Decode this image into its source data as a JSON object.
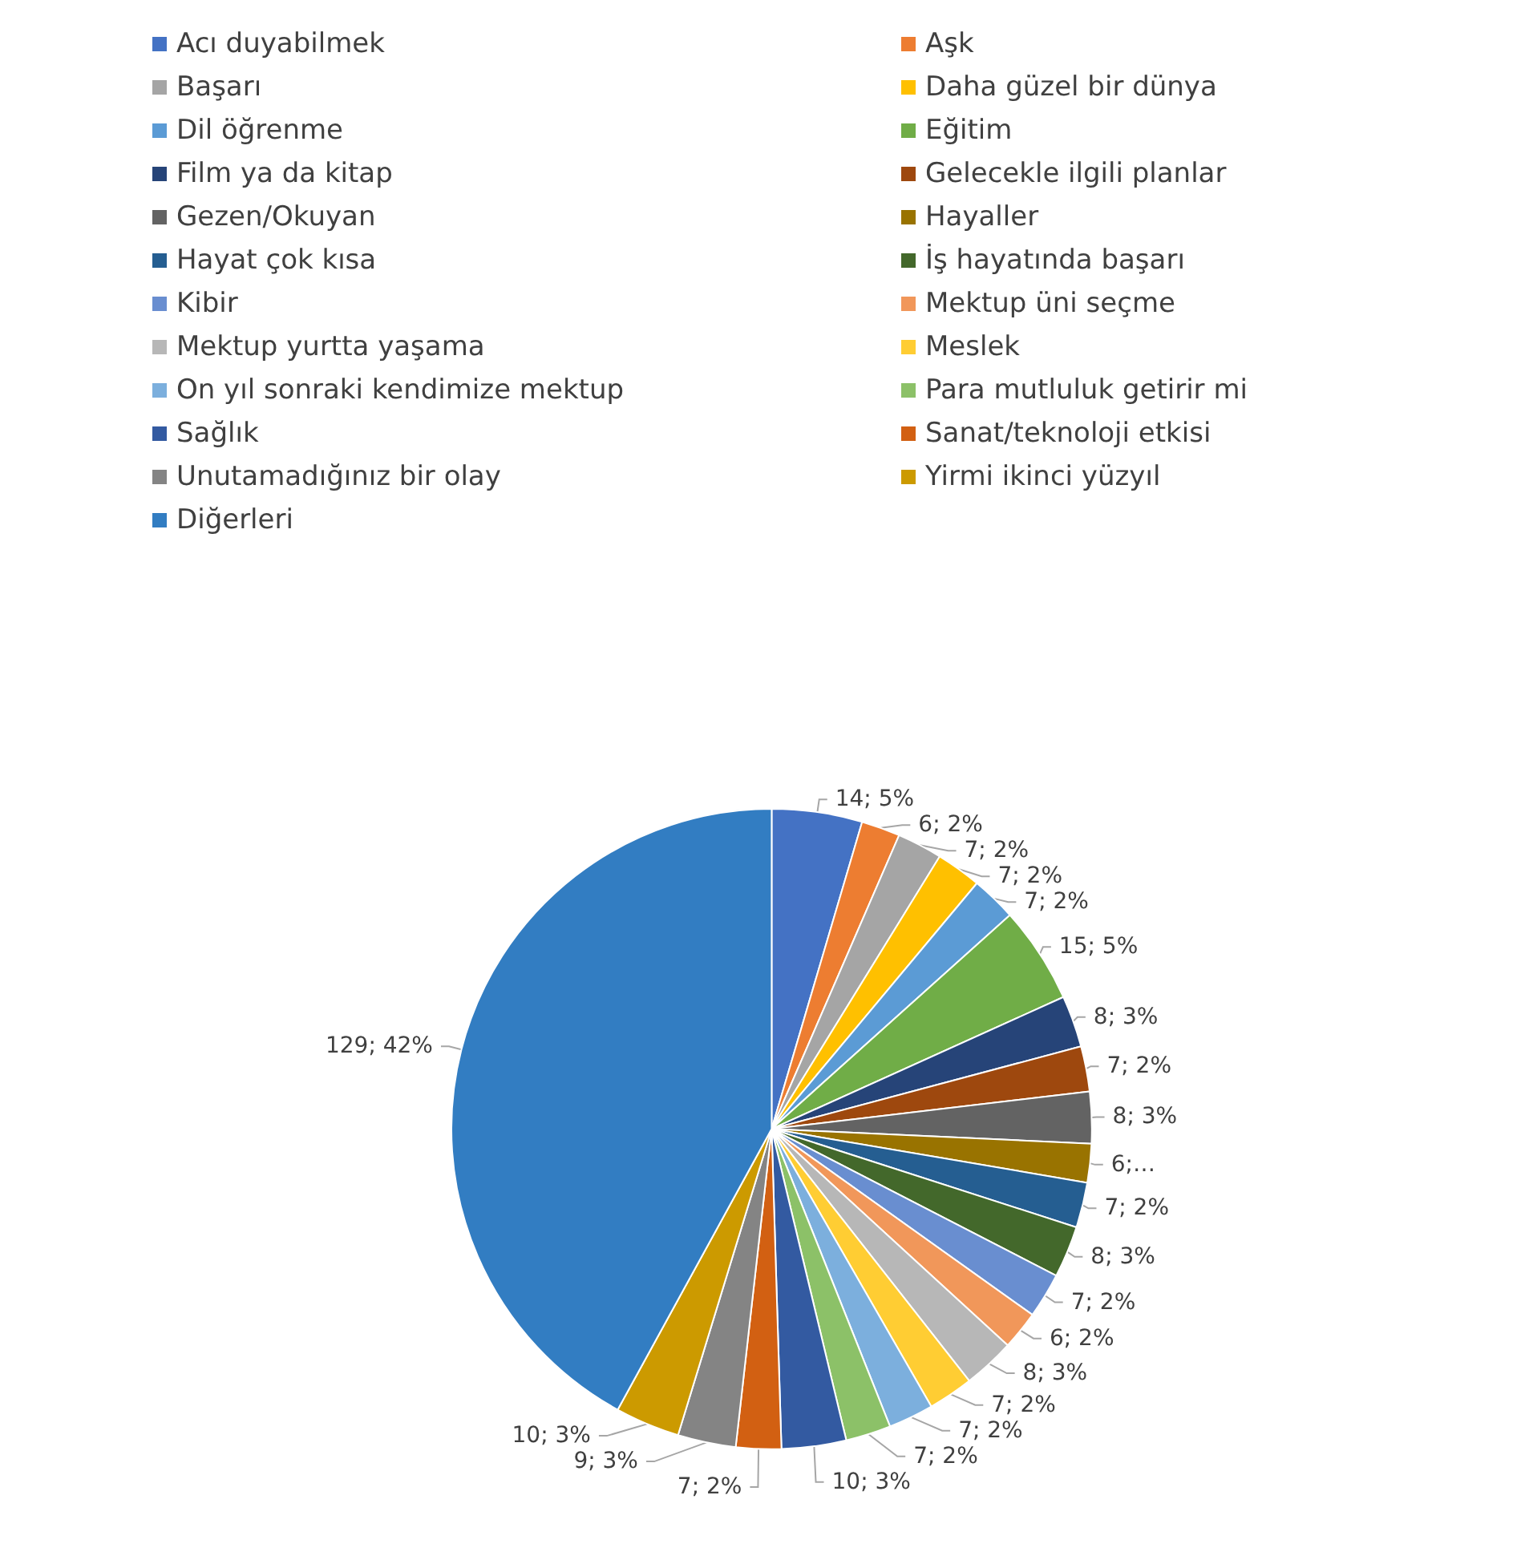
{
  "chart_data": {
    "type": "pie",
    "categories": [
      "Acı duyabilmek",
      "Aşk",
      "Başarı",
      "Daha güzel bir dünya",
      "Dil öğrenme",
      "Eğitim",
      "Film ya da kitap",
      "Gelecekle ilgili planlar",
      "Gezen/Okuyan",
      "Hayaller",
      "Hayat çok kısa",
      "İş hayatında başarı",
      "Kibir",
      "Mektup üni seçme",
      "Mektup yurtta yaşama",
      "Meslek",
      "On yıl sonraki kendimize mektup",
      "Para mutluluk getirir mi",
      "Sağlık",
      "Sanat/teknoloji etkisi",
      "Unutamadığınız bir olay",
      "Yirmi ikinci yüzyıl",
      "Diğerleri"
    ],
    "values": [
      14,
      6,
      7,
      7,
      7,
      15,
      8,
      7,
      8,
      6,
      7,
      8,
      7,
      6,
      8,
      7,
      7,
      7,
      10,
      7,
      9,
      10,
      129
    ],
    "value_labels": [
      "14; 5%",
      "6; 2%",
      "7; 2%",
      "7; 2%",
      "7; 2%",
      "15; 5%",
      "8; 3%",
      "7; 2%",
      "8; 3%",
      "6;…",
      "7; 2%",
      "8; 3%",
      "7; 2%",
      "6; 2%",
      "8; 3%",
      "7; 2%",
      "7; 2%",
      "7; 2%",
      "10; 3%",
      "7; 2%",
      "9; 3%",
      "10; 3%",
      "129; 42%"
    ],
    "colors": [
      "#4472c4",
      "#ed7d31",
      "#a5a5a5",
      "#ffc000",
      "#5b9bd5",
      "#70ad47",
      "#264478",
      "#9e480e",
      "#636363",
      "#997300",
      "#255e91",
      "#43682b",
      "#698ed0",
      "#f1975a",
      "#b7b7b7",
      "#ffcd33",
      "#7cafdd",
      "#8cc168",
      "#335aa1",
      "#d26012",
      "#848484",
      "#cc9a00",
      "#327dc2"
    ],
    "legend": "top"
  }
}
